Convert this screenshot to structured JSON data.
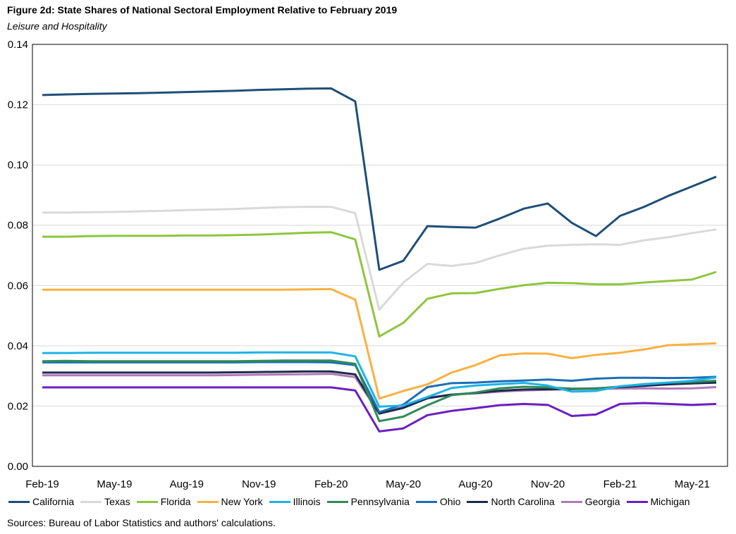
{
  "header": {
    "title": "Figure 2d: State Shares of National Sectoral Employment Relative to February 2019",
    "subtitle": "Leisure and Hospitality"
  },
  "source": "Sources: Bureau of Labor Statistics and authors' calculations.",
  "chart_data": {
    "type": "line",
    "title": "Figure 2d: State Shares of National Sectoral Employment Relative to February 2019",
    "subtitle": "Leisure and Hospitality",
    "xlabel": "",
    "ylabel": "",
    "ylim": [
      0,
      0.14
    ],
    "yticks": [
      "0.00",
      "0.02",
      "0.04",
      "0.06",
      "0.08",
      "0.10",
      "0.12",
      "0.14"
    ],
    "grid": "horizontal",
    "legend_position": "bottom",
    "x": [
      "Feb-19",
      "Mar-19",
      "Apr-19",
      "May-19",
      "Jun-19",
      "Jul-19",
      "Aug-19",
      "Sep-19",
      "Oct-19",
      "Nov-19",
      "Dec-19",
      "Jan-20",
      "Feb-20",
      "Mar-20",
      "Apr-20",
      "May-20",
      "Jun-20",
      "Jul-20",
      "Aug-20",
      "Sep-20",
      "Oct-20",
      "Nov-20",
      "Dec-20",
      "Jan-21",
      "Feb-21",
      "Mar-21",
      "Apr-21",
      "May-21",
      "Jun-21"
    ],
    "xtick_labels": [
      "Feb-19",
      "May-19",
      "Aug-19",
      "Nov-19",
      "Feb-20",
      "May-20",
      "Aug-20",
      "Nov-20",
      "Feb-21",
      "May-21"
    ],
    "series": [
      {
        "name": "California",
        "color": "#1f4e79",
        "values": [
          0.1232,
          0.1234,
          0.1236,
          0.1237,
          0.1238,
          0.124,
          0.1242,
          0.1244,
          0.1246,
          0.1249,
          0.1251,
          0.1253,
          0.1254,
          0.1211,
          0.0652,
          0.0682,
          0.0797,
          0.0794,
          0.0792,
          0.0822,
          0.0855,
          0.0872,
          0.0808,
          0.0764,
          0.0831,
          0.0861,
          0.0897,
          0.0929,
          0.0961
        ]
      },
      {
        "name": "Texas",
        "color": "#d9d9d9",
        "values": [
          0.0842,
          0.0842,
          0.0843,
          0.0844,
          0.0846,
          0.0848,
          0.085,
          0.0852,
          0.0854,
          0.0857,
          0.086,
          0.0861,
          0.0861,
          0.084,
          0.052,
          0.061,
          0.0672,
          0.0665,
          0.0675,
          0.07,
          0.0722,
          0.0732,
          0.0735,
          0.0737,
          0.0735,
          0.075,
          0.076,
          0.0774,
          0.0786
        ]
      },
      {
        "name": "Florida",
        "color": "#8dc63f",
        "values": [
          0.0762,
          0.0762,
          0.0764,
          0.0765,
          0.0765,
          0.0765,
          0.0766,
          0.0766,
          0.0767,
          0.0769,
          0.0772,
          0.0775,
          0.0777,
          0.0753,
          0.0431,
          0.0476,
          0.0556,
          0.0574,
          0.0575,
          0.0589,
          0.0601,
          0.0609,
          0.0608,
          0.0604,
          0.0604,
          0.061,
          0.0615,
          0.062,
          0.0645
        ]
      },
      {
        "name": "New York",
        "color": "#fbb040",
        "values": [
          0.0586,
          0.0586,
          0.0586,
          0.0586,
          0.0586,
          0.0586,
          0.0586,
          0.0586,
          0.0586,
          0.0586,
          0.0586,
          0.0587,
          0.0588,
          0.0553,
          0.0225,
          0.025,
          0.0272,
          0.0311,
          0.0336,
          0.0368,
          0.0375,
          0.0374,
          0.0359,
          0.037,
          0.0377,
          0.0388,
          0.0402,
          0.0405,
          0.0408
        ]
      },
      {
        "name": "Illinois",
        "color": "#1fb3e6",
        "values": [
          0.0376,
          0.0376,
          0.0377,
          0.0377,
          0.0377,
          0.0377,
          0.0377,
          0.0377,
          0.0377,
          0.0378,
          0.0378,
          0.0378,
          0.0378,
          0.0365,
          0.0198,
          0.0202,
          0.023,
          0.026,
          0.0268,
          0.0273,
          0.0277,
          0.0268,
          0.0248,
          0.025,
          0.0266,
          0.0272,
          0.0278,
          0.0284,
          0.0295
        ]
      },
      {
        "name": "Pennsylvania",
        "color": "#2e8b57",
        "values": [
          0.0349,
          0.035,
          0.0349,
          0.0349,
          0.0349,
          0.0349,
          0.0349,
          0.0349,
          0.0349,
          0.035,
          0.0351,
          0.0351,
          0.0351,
          0.034,
          0.015,
          0.0165,
          0.0203,
          0.0236,
          0.0245,
          0.0259,
          0.0264,
          0.0262,
          0.0258,
          0.0258,
          0.0265,
          0.0273,
          0.0278,
          0.028,
          0.0284
        ]
      },
      {
        "name": "Ohio",
        "color": "#1a6fb5",
        "values": [
          0.0345,
          0.0345,
          0.0345,
          0.0345,
          0.0345,
          0.0345,
          0.0345,
          0.0345,
          0.0345,
          0.0346,
          0.0346,
          0.0346,
          0.0345,
          0.0336,
          0.018,
          0.0205,
          0.0263,
          0.0276,
          0.0278,
          0.0282,
          0.0285,
          0.0288,
          0.0284,
          0.0291,
          0.0294,
          0.0294,
          0.0293,
          0.0294,
          0.0297
        ]
      },
      {
        "name": "North Carolina",
        "color": "#1b2a4e",
        "values": [
          0.0311,
          0.0311,
          0.0311,
          0.0311,
          0.0311,
          0.0311,
          0.0311,
          0.0311,
          0.0312,
          0.0313,
          0.0314,
          0.0315,
          0.0315,
          0.0305,
          0.0175,
          0.0194,
          0.0226,
          0.0238,
          0.0244,
          0.0251,
          0.0255,
          0.0256,
          0.0257,
          0.0259,
          0.0263,
          0.0267,
          0.0272,
          0.0275,
          0.0278
        ]
      },
      {
        "name": "Georgia",
        "color": "#b07ab8",
        "values": [
          0.0302,
          0.0302,
          0.0302,
          0.0302,
          0.0302,
          0.0302,
          0.0302,
          0.0302,
          0.0303,
          0.0304,
          0.0305,
          0.0306,
          0.0307,
          0.0296,
          0.0175,
          0.0196,
          0.0228,
          0.0238,
          0.0242,
          0.0248,
          0.0252,
          0.0254,
          0.0256,
          0.0257,
          0.0258,
          0.0259,
          0.0258,
          0.0259,
          0.0263
        ]
      },
      {
        "name": "Michigan",
        "color": "#6a1fc2",
        "values": [
          0.0262,
          0.0262,
          0.0262,
          0.0262,
          0.0262,
          0.0262,
          0.0262,
          0.0262,
          0.0262,
          0.0262,
          0.0262,
          0.0262,
          0.0262,
          0.0252,
          0.0116,
          0.0126,
          0.017,
          0.0184,
          0.0193,
          0.0203,
          0.0207,
          0.0204,
          0.0167,
          0.0172,
          0.0207,
          0.021,
          0.0207,
          0.0204,
          0.0207
        ]
      }
    ]
  }
}
